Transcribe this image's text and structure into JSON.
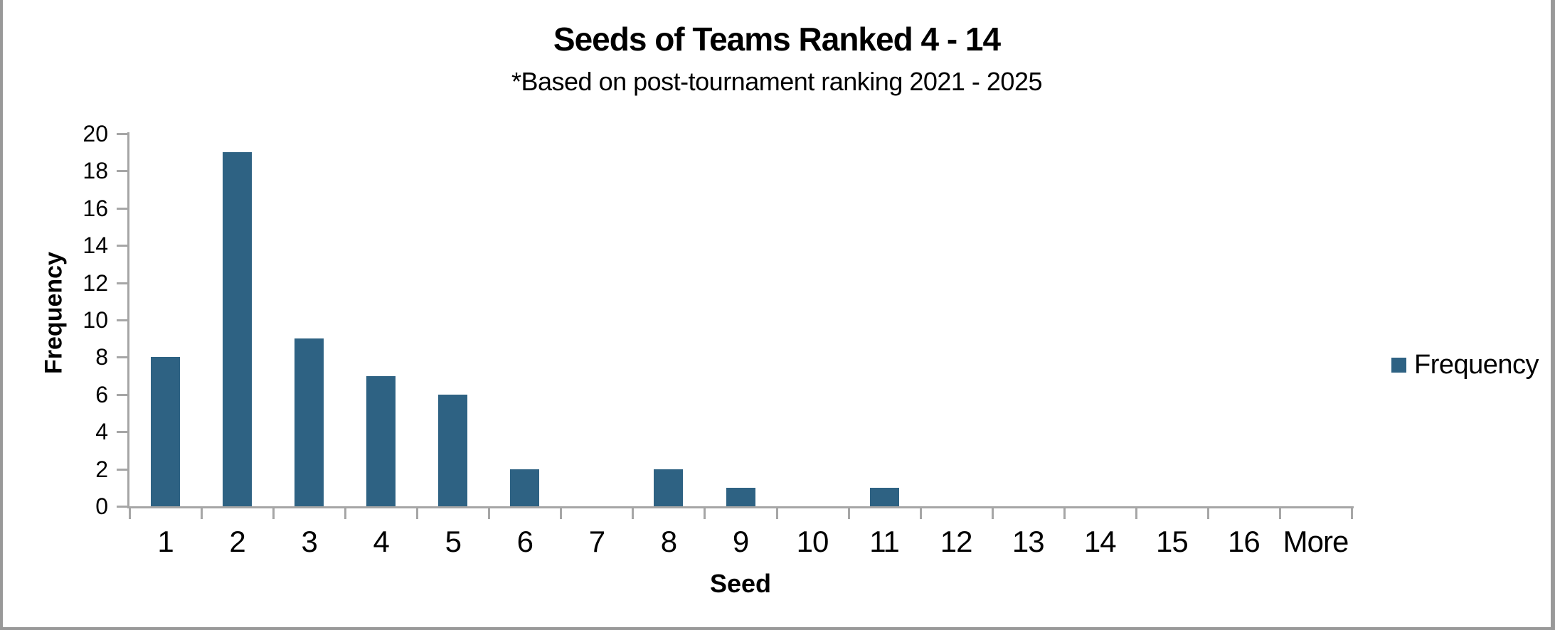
{
  "frame": {
    "background": "#ffffff",
    "border_color": "#999999"
  },
  "chart_data": {
    "type": "bar",
    "title": "Seeds of Teams Ranked 4 - 14",
    "subtitle": "*Based on post-tournament ranking 2021 - 2025",
    "xlabel": "Seed",
    "ylabel": "Frequency",
    "categories": [
      "1",
      "2",
      "3",
      "4",
      "5",
      "6",
      "7",
      "8",
      "9",
      "10",
      "11",
      "12",
      "13",
      "14",
      "15",
      "16",
      "More"
    ],
    "series": [
      {
        "name": "Frequency",
        "color": "#2E6283",
        "values": [
          8,
          19,
          9,
          7,
          6,
          2,
          0,
          2,
          1,
          0,
          1,
          0,
          0,
          0,
          0,
          0,
          0
        ]
      }
    ],
    "ylim": [
      0,
      20
    ],
    "ytick_step": 2,
    "grid": false,
    "axis_color": "#A6A6A6",
    "text_color": "#000000",
    "legend": {
      "position": "right",
      "label": "Frequency",
      "swatch_color": "#2E6283"
    }
  }
}
